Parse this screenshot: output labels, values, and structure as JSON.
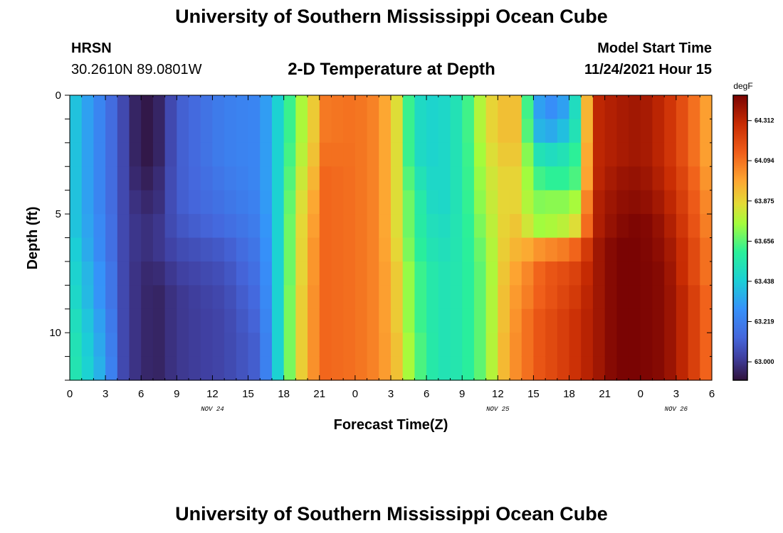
{
  "header": {
    "title": "University of Southern Mississippi Ocean Cube",
    "station": "HRSN",
    "coords": "30.2610N  89.0801W",
    "plot_title": "2-D Temperature at Depth",
    "model_label": "Model Start Time",
    "model_time": "11/24/2021 Hour 15",
    "footer_title": "University of Southern Mississippi Ocean Cube"
  },
  "colorbar": {
    "unit": "degF",
    "ticks": [
      "63.000",
      "63.219",
      "63.438",
      "63.656",
      "63.875",
      "64.094",
      "64.312"
    ],
    "range": [
      62.9,
      64.45
    ]
  },
  "chart_data": {
    "type": "heatmap",
    "title": "2-D Temperature at Depth",
    "xlabel": "Forecast Time(Z)",
    "ylabel": "Depth (ft)",
    "x_tick_labels": [
      "0",
      "3",
      "6",
      "9",
      "12",
      "15",
      "18",
      "21",
      "0",
      "3",
      "6",
      "9",
      "12",
      "15",
      "18",
      "21",
      "0",
      "3",
      "6"
    ],
    "x_range_hours": [
      0,
      54
    ],
    "date_labels": [
      {
        "text": "NOV 24",
        "hour": 12
      },
      {
        "text": "NOV 25",
        "hour": 36
      },
      {
        "text": "NOV 26",
        "hour": 51
      }
    ],
    "y_tick_labels": [
      "0",
      "5",
      "10"
    ],
    "y_range": [
      0,
      12
    ],
    "y_reversed": true,
    "color_unit": "degF",
    "color_range": [
      62.9,
      64.45
    ],
    "depths": [
      0,
      1,
      2,
      3,
      4,
      5,
      6,
      7,
      8,
      9,
      10,
      11
    ],
    "profile_hours": [
      0,
      3,
      4.5,
      6,
      7.5,
      9,
      13,
      16,
      17.5,
      19,
      20.5,
      21.5,
      24,
      26,
      27.5,
      29,
      31,
      33,
      35,
      37,
      38,
      39,
      40,
      41,
      42,
      43,
      44,
      46,
      48,
      50,
      52,
      54
    ],
    "profiles": [
      [
        63.45,
        63.45,
        63.45,
        63.45,
        63.45,
        63.45,
        63.48,
        63.5,
        63.52,
        63.55,
        63.57,
        63.58
      ],
      [
        63.2,
        63.2,
        63.2,
        63.2,
        63.2,
        63.22,
        63.22,
        63.25,
        63.25,
        63.28,
        63.3,
        63.32
      ],
      [
        63.05,
        63.05,
        63.05,
        63.05,
        63.05,
        63.05,
        63.05,
        63.05,
        63.05,
        63.05,
        63.05,
        63.05
      ],
      [
        62.9,
        62.9,
        62.9,
        62.92,
        62.95,
        62.97,
        62.97,
        62.96,
        62.96,
        62.96,
        62.96,
        62.96
      ],
      [
        62.95,
        62.95,
        62.95,
        62.97,
        62.98,
        63.0,
        63.0,
        62.97,
        62.95,
        62.95,
        62.95,
        62.95
      ],
      [
        63.1,
        63.1,
        63.1,
        63.1,
        63.1,
        63.08,
        63.05,
        63.02,
        63.0,
        63.0,
        63.0,
        63.0
      ],
      [
        63.22,
        63.22,
        63.22,
        63.2,
        63.18,
        63.15,
        63.1,
        63.07,
        63.05,
        63.04,
        63.04,
        63.04
      ],
      [
        63.25,
        63.25,
        63.25,
        63.25,
        63.24,
        63.22,
        63.2,
        63.18,
        63.16,
        63.14,
        63.12,
        63.12
      ],
      [
        63.45,
        63.45,
        63.45,
        63.45,
        63.45,
        63.45,
        63.45,
        63.45,
        63.45,
        63.45,
        63.45,
        63.45
      ],
      [
        63.7,
        63.7,
        63.72,
        63.75,
        63.78,
        63.8,
        63.8,
        63.8,
        63.82,
        63.82,
        63.82,
        63.82
      ],
      [
        63.9,
        63.9,
        63.92,
        63.95,
        63.98,
        64.0,
        64.02,
        64.02,
        64.03,
        64.03,
        64.03,
        64.03
      ],
      [
        64.08,
        64.08,
        64.1,
        64.12,
        64.12,
        64.12,
        64.12,
        64.12,
        64.12,
        64.12,
        64.12,
        64.12
      ],
      [
        64.1,
        64.1,
        64.1,
        64.1,
        64.1,
        64.1,
        64.1,
        64.1,
        64.1,
        64.1,
        64.1,
        64.1
      ],
      [
        64.05,
        64.05,
        64.05,
        64.05,
        64.05,
        64.05,
        64.05,
        64.05,
        64.05,
        64.05,
        64.05,
        64.05
      ],
      [
        63.85,
        63.85,
        63.85,
        63.85,
        63.85,
        63.85,
        63.87,
        63.9,
        63.9,
        63.9,
        63.92,
        63.92
      ],
      [
        63.5,
        63.5,
        63.5,
        63.55,
        63.6,
        63.6,
        63.62,
        63.65,
        63.65,
        63.65,
        63.68,
        63.68
      ],
      [
        63.45,
        63.45,
        63.45,
        63.45,
        63.45,
        63.48,
        63.5,
        63.52,
        63.52,
        63.52,
        63.52,
        63.52
      ],
      [
        63.55,
        63.55,
        63.55,
        63.55,
        63.55,
        63.55,
        63.55,
        63.55,
        63.55,
        63.55,
        63.55,
        63.55
      ],
      [
        63.85,
        63.85,
        63.82,
        63.8,
        63.78,
        63.75,
        63.72,
        63.7,
        63.7,
        63.7,
        63.7,
        63.7
      ],
      [
        63.95,
        63.95,
        63.93,
        63.9,
        63.9,
        63.92,
        63.95,
        63.98,
        64.0,
        64.0,
        64.02,
        64.02
      ],
      [
        63.9,
        63.9,
        63.88,
        63.85,
        63.85,
        63.9,
        63.95,
        64.0,
        64.02,
        64.05,
        64.05,
        64.05
      ],
      [
        63.35,
        63.4,
        63.55,
        63.65,
        63.7,
        63.75,
        64.0,
        64.1,
        64.12,
        64.15,
        64.15,
        64.15
      ],
      [
        63.3,
        63.35,
        63.5,
        63.6,
        63.72,
        63.75,
        64.05,
        64.15,
        64.15,
        64.18,
        64.18,
        64.18
      ],
      [
        63.25,
        63.35,
        63.5,
        63.6,
        63.72,
        63.78,
        64.05,
        64.18,
        64.2,
        64.22,
        64.22,
        64.22
      ],
      [
        63.4,
        63.45,
        63.55,
        63.6,
        63.72,
        63.8,
        64.1,
        64.2,
        64.22,
        64.25,
        64.25,
        64.25
      ],
      [
        63.6,
        63.6,
        63.65,
        63.68,
        63.8,
        63.9,
        64.15,
        64.25,
        64.28,
        64.3,
        64.3,
        64.3
      ],
      [
        64.3,
        64.3,
        64.3,
        64.3,
        64.32,
        64.32,
        64.35,
        64.35,
        64.35,
        64.35,
        64.35,
        64.35
      ],
      [
        64.35,
        64.35,
        64.35,
        64.38,
        64.4,
        64.42,
        64.45,
        64.45,
        64.45,
        64.45,
        64.45,
        64.45
      ],
      [
        64.38,
        64.38,
        64.38,
        64.4,
        64.42,
        64.45,
        64.45,
        64.45,
        64.45,
        64.45,
        64.45,
        64.45
      ],
      [
        64.3,
        64.3,
        64.3,
        64.32,
        64.35,
        64.38,
        64.4,
        64.42,
        64.42,
        64.42,
        64.42,
        64.42
      ],
      [
        64.15,
        64.15,
        64.15,
        64.18,
        64.2,
        64.22,
        64.25,
        64.25,
        64.28,
        64.28,
        64.28,
        64.28
      ],
      [
        63.95,
        63.95,
        63.95,
        63.97,
        64.0,
        64.02,
        64.05,
        64.05,
        64.08,
        64.08,
        64.08,
        64.08
      ]
    ]
  }
}
